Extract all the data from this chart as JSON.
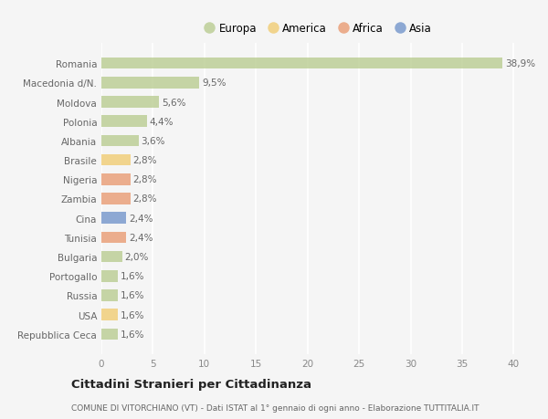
{
  "categories": [
    "Romania",
    "Macedonia d/N.",
    "Moldova",
    "Polonia",
    "Albania",
    "Brasile",
    "Nigeria",
    "Zambia",
    "Cina",
    "Tunisia",
    "Bulgaria",
    "Portogallo",
    "Russia",
    "USA",
    "Repubblica Ceca"
  ],
  "values": [
    38.9,
    9.5,
    5.6,
    4.4,
    3.6,
    2.8,
    2.8,
    2.8,
    2.4,
    2.4,
    2.0,
    1.6,
    1.6,
    1.6,
    1.6
  ],
  "labels": [
    "38,9%",
    "9,5%",
    "5,6%",
    "4,4%",
    "3,6%",
    "2,8%",
    "2,8%",
    "2,8%",
    "2,4%",
    "2,4%",
    "2,0%",
    "1,6%",
    "1,6%",
    "1,6%",
    "1,6%"
  ],
  "bar_colors": [
    "#b5c98a",
    "#b5c98a",
    "#b5c98a",
    "#b5c98a",
    "#b5c98a",
    "#f0c96a",
    "#e8956a",
    "#e8956a",
    "#6a8fc8",
    "#e8956a",
    "#b5c98a",
    "#b5c98a",
    "#b5c98a",
    "#f0c96a",
    "#b5c98a"
  ],
  "legend_labels": [
    "Europa",
    "America",
    "Africa",
    "Asia"
  ],
  "legend_colors": [
    "#b5c98a",
    "#f0c96a",
    "#e8956a",
    "#6a8fc8"
  ],
  "title": "Cittadini Stranieri per Cittadinanza",
  "subtitle": "COMUNE DI VITORCHIANO (VT) - Dati ISTAT al 1° gennaio di ogni anno - Elaborazione TUTTITALIA.IT",
  "xlim": [
    0,
    42
  ],
  "xticks": [
    0,
    5,
    10,
    15,
    20,
    25,
    30,
    35,
    40
  ],
  "background_color": "#f5f5f5",
  "grid_color": "#e8e8e8",
  "bar_alpha": 0.75
}
